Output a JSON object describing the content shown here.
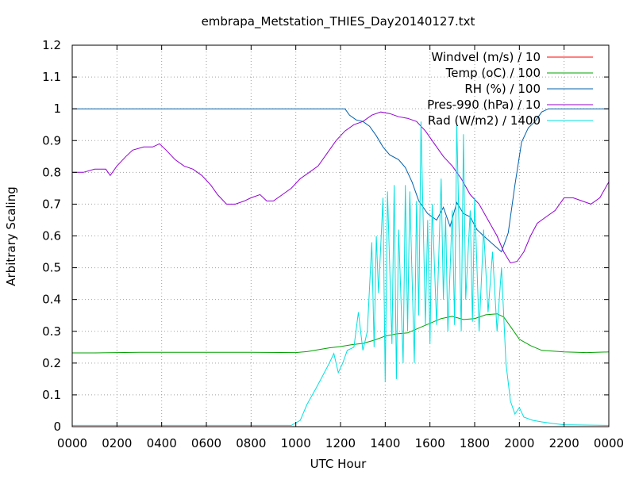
{
  "chart_data": {
    "type": "line",
    "title": "embrapa_Metstation_THIES_Day20140127.txt",
    "xlabel": "UTC Hour",
    "ylabel": "Arbitrary Scaling",
    "xlim": [
      0,
      24
    ],
    "ylim": [
      0,
      1.2
    ],
    "grid": true,
    "legend_position": "top-right",
    "x_ticks": [
      {
        "value": 0,
        "label": "0000"
      },
      {
        "value": 2,
        "label": "0200"
      },
      {
        "value": 4,
        "label": "0400"
      },
      {
        "value": 6,
        "label": "0600"
      },
      {
        "value": 8,
        "label": "0800"
      },
      {
        "value": 10,
        "label": "1000"
      },
      {
        "value": 12,
        "label": "1200"
      },
      {
        "value": 14,
        "label": "1400"
      },
      {
        "value": 16,
        "label": "1600"
      },
      {
        "value": 18,
        "label": "1800"
      },
      {
        "value": 20,
        "label": "2000"
      },
      {
        "value": 22,
        "label": "2200"
      },
      {
        "value": 24,
        "label": "0000"
      }
    ],
    "y_ticks": [
      {
        "value": 0,
        "label": "0"
      },
      {
        "value": 0.1,
        "label": "0.1"
      },
      {
        "value": 0.2,
        "label": "0.2"
      },
      {
        "value": 0.3,
        "label": "0.3"
      },
      {
        "value": 0.4,
        "label": "0.4"
      },
      {
        "value": 0.5,
        "label": "0.5"
      },
      {
        "value": 0.6,
        "label": "0.6"
      },
      {
        "value": 0.7,
        "label": "0.7"
      },
      {
        "value": 0.8,
        "label": "0.8"
      },
      {
        "value": 0.9,
        "label": "0.9"
      },
      {
        "value": 1,
        "label": "1"
      },
      {
        "value": 1.1,
        "label": "1.1"
      },
      {
        "value": 1.2,
        "label": "1.2"
      }
    ],
    "series": [
      {
        "name": "Windvel (m/s) / 10",
        "color": "#ff0000",
        "points": [
          [
            0,
            0
          ],
          [
            24,
            0
          ]
        ]
      },
      {
        "name": "Temp (oC) / 100",
        "color": "#00a000",
        "points": [
          [
            0,
            0.232
          ],
          [
            1,
            0.232
          ],
          [
            2,
            0.233
          ],
          [
            3,
            0.234
          ],
          [
            4,
            0.234
          ],
          [
            6,
            0.234
          ],
          [
            8,
            0.234
          ],
          [
            10,
            0.233
          ],
          [
            10.5,
            0.236
          ],
          [
            11,
            0.242
          ],
          [
            11.5,
            0.248
          ],
          [
            12,
            0.252
          ],
          [
            12.5,
            0.258
          ],
          [
            13,
            0.262
          ],
          [
            13.5,
            0.272
          ],
          [
            14,
            0.285
          ],
          [
            14.5,
            0.292
          ],
          [
            15,
            0.295
          ],
          [
            15.5,
            0.31
          ],
          [
            16,
            0.325
          ],
          [
            16.5,
            0.34
          ],
          [
            17,
            0.347
          ],
          [
            17.5,
            0.337
          ],
          [
            18,
            0.34
          ],
          [
            18.5,
            0.352
          ],
          [
            19,
            0.355
          ],
          [
            19.3,
            0.345
          ],
          [
            19.6,
            0.315
          ],
          [
            20,
            0.275
          ],
          [
            20.5,
            0.255
          ],
          [
            21,
            0.24
          ],
          [
            22,
            0.235
          ],
          [
            23,
            0.233
          ],
          [
            24,
            0.235
          ]
        ]
      },
      {
        "name": "RH (%) / 100",
        "color": "#0060ad",
        "points": [
          [
            0,
            1.0
          ],
          [
            12,
            1.0
          ],
          [
            12.2,
            1.0
          ],
          [
            12.4,
            0.98
          ],
          [
            12.7,
            0.965
          ],
          [
            13,
            0.96
          ],
          [
            13.3,
            0.945
          ],
          [
            13.6,
            0.915
          ],
          [
            13.9,
            0.88
          ],
          [
            14.2,
            0.855
          ],
          [
            14.6,
            0.84
          ],
          [
            14.9,
            0.815
          ],
          [
            15.2,
            0.77
          ],
          [
            15.5,
            0.71
          ],
          [
            15.9,
            0.67
          ],
          [
            16.3,
            0.65
          ],
          [
            16.6,
            0.69
          ],
          [
            16.9,
            0.63
          ],
          [
            17.2,
            0.705
          ],
          [
            17.5,
            0.67
          ],
          [
            17.8,
            0.66
          ],
          [
            18.1,
            0.62
          ],
          [
            18.4,
            0.6
          ],
          [
            18.8,
            0.575
          ],
          [
            19.2,
            0.55
          ],
          [
            19.5,
            0.61
          ],
          [
            19.8,
            0.76
          ],
          [
            20.1,
            0.895
          ],
          [
            20.4,
            0.94
          ],
          [
            20.7,
            0.96
          ],
          [
            21,
            0.99
          ],
          [
            21.3,
            1.0
          ],
          [
            24,
            1.0
          ]
        ]
      },
      {
        "name": "Pres-990 (hPa) / 10",
        "color": "#9400d3",
        "points": [
          [
            0,
            0.8
          ],
          [
            0.5,
            0.8
          ],
          [
            1,
            0.81
          ],
          [
            1.5,
            0.81
          ],
          [
            1.7,
            0.79
          ],
          [
            2,
            0.82
          ],
          [
            2.4,
            0.85
          ],
          [
            2.7,
            0.87
          ],
          [
            3.2,
            0.88
          ],
          [
            3.6,
            0.88
          ],
          [
            3.9,
            0.89
          ],
          [
            4.2,
            0.87
          ],
          [
            4.6,
            0.84
          ],
          [
            5,
            0.82
          ],
          [
            5.4,
            0.81
          ],
          [
            5.8,
            0.79
          ],
          [
            6.2,
            0.76
          ],
          [
            6.5,
            0.73
          ],
          [
            6.9,
            0.7
          ],
          [
            7.3,
            0.7
          ],
          [
            7.7,
            0.71
          ],
          [
            8,
            0.72
          ],
          [
            8.4,
            0.73
          ],
          [
            8.7,
            0.71
          ],
          [
            9,
            0.71
          ],
          [
            9.4,
            0.73
          ],
          [
            9.8,
            0.75
          ],
          [
            10.2,
            0.78
          ],
          [
            10.6,
            0.8
          ],
          [
            11,
            0.82
          ],
          [
            11.4,
            0.86
          ],
          [
            11.8,
            0.9
          ],
          [
            12.2,
            0.93
          ],
          [
            12.6,
            0.95
          ],
          [
            13,
            0.96
          ],
          [
            13.4,
            0.98
          ],
          [
            13.8,
            0.99
          ],
          [
            14.2,
            0.985
          ],
          [
            14.6,
            0.975
          ],
          [
            15,
            0.97
          ],
          [
            15.4,
            0.96
          ],
          [
            15.8,
            0.93
          ],
          [
            16.2,
            0.89
          ],
          [
            16.6,
            0.85
          ],
          [
            17,
            0.82
          ],
          [
            17.4,
            0.78
          ],
          [
            17.8,
            0.73
          ],
          [
            18.2,
            0.7
          ],
          [
            18.6,
            0.65
          ],
          [
            19,
            0.6
          ],
          [
            19.3,
            0.55
          ],
          [
            19.6,
            0.515
          ],
          [
            19.9,
            0.52
          ],
          [
            20.2,
            0.55
          ],
          [
            20.5,
            0.6
          ],
          [
            20.8,
            0.64
          ],
          [
            21.2,
            0.66
          ],
          [
            21.6,
            0.68
          ],
          [
            22,
            0.72
          ],
          [
            22.4,
            0.72
          ],
          [
            22.8,
            0.71
          ],
          [
            23.2,
            0.7
          ],
          [
            23.6,
            0.72
          ],
          [
            24,
            0.77
          ]
        ]
      },
      {
        "name": "Rad (W/m2) / 1400",
        "color": "#00e0e0",
        "points": [
          [
            0,
            0.004
          ],
          [
            9.8,
            0.004
          ],
          [
            10.2,
            0.02
          ],
          [
            10.5,
            0.07
          ],
          [
            10.9,
            0.12
          ],
          [
            11.2,
            0.16
          ],
          [
            11.5,
            0.2
          ],
          [
            11.7,
            0.23
          ],
          [
            11.9,
            0.17
          ],
          [
            12.1,
            0.2
          ],
          [
            12.3,
            0.24
          ],
          [
            12.6,
            0.25
          ],
          [
            12.8,
            0.36
          ],
          [
            13,
            0.24
          ],
          [
            13.2,
            0.3
          ],
          [
            13.4,
            0.58
          ],
          [
            13.5,
            0.25
          ],
          [
            13.6,
            0.6
          ],
          [
            13.7,
            0.42
          ],
          [
            13.9,
            0.72
          ],
          [
            14,
            0.14
          ],
          [
            14.1,
            0.74
          ],
          [
            14.3,
            0.26
          ],
          [
            14.4,
            0.76
          ],
          [
            14.5,
            0.15
          ],
          [
            14.6,
            0.62
          ],
          [
            14.8,
            0.2
          ],
          [
            14.9,
            0.76
          ],
          [
            15,
            0.3
          ],
          [
            15.1,
            0.74
          ],
          [
            15.3,
            0.2
          ],
          [
            15.4,
            0.71
          ],
          [
            15.5,
            0.35
          ],
          [
            15.6,
            0.96
          ],
          [
            15.8,
            0.32
          ],
          [
            15.9,
            0.65
          ],
          [
            16,
            0.26
          ],
          [
            16.1,
            0.7
          ],
          [
            16.3,
            0.32
          ],
          [
            16.5,
            0.78
          ],
          [
            16.6,
            0.4
          ],
          [
            16.7,
            0.66
          ],
          [
            16.8,
            0.3
          ],
          [
            17,
            0.68
          ],
          [
            17.1,
            0.32
          ],
          [
            17.2,
            0.95
          ],
          [
            17.4,
            0.3
          ],
          [
            17.5,
            0.92
          ],
          [
            17.6,
            0.4
          ],
          [
            17.8,
            0.68
          ],
          [
            17.9,
            0.33
          ],
          [
            18,
            0.72
          ],
          [
            18.2,
            0.3
          ],
          [
            18.4,
            0.62
          ],
          [
            18.6,
            0.36
          ],
          [
            18.8,
            0.55
          ],
          [
            19,
            0.3
          ],
          [
            19.2,
            0.5
          ],
          [
            19.4,
            0.2
          ],
          [
            19.6,
            0.08
          ],
          [
            19.8,
            0.04
          ],
          [
            20,
            0.06
          ],
          [
            20.2,
            0.03
          ],
          [
            20.6,
            0.02
          ],
          [
            21,
            0.015
          ],
          [
            21.5,
            0.01
          ],
          [
            22,
            0.006
          ],
          [
            24,
            0.004
          ]
        ]
      }
    ]
  }
}
